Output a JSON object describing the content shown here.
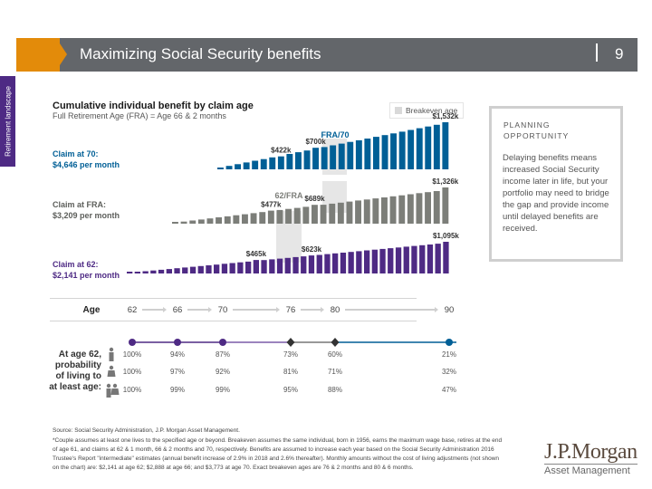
{
  "header": {
    "title": "Maximizing Social Security benefits",
    "page_number": "9",
    "side_tab": "Retirement landscape"
  },
  "chart_data": {
    "type": "bar",
    "title": "Cumulative individual benefit by claim age",
    "subtitle": "Full Retirement Age (FRA) = Age 66 & 2 months",
    "legend": {
      "label": "Breakeven age",
      "position": "top-right",
      "swatch_color": "#d9d9d9"
    },
    "xlabel": "Age",
    "age_ticks": [
      "62",
      "66",
      "70",
      "76",
      "80",
      "90"
    ],
    "series": [
      {
        "name": "Claim at 70",
        "label_line1": "Claim at 70:",
        "label_line2": "$4,646 per month",
        "color": "#005f96",
        "start_age": 70,
        "values_k": [
          56,
          111,
          167,
          223,
          279,
          334,
          390,
          422,
          502,
          557,
          613,
          700,
          724,
          780,
          836,
          892,
          947,
          1003,
          1059,
          1115,
          1170,
          1226,
          1282,
          1338,
          1394,
          1449,
          1532
        ],
        "annotations": [
          {
            "text": "$422k",
            "index": 7
          },
          {
            "text": "$700k",
            "index": 11
          },
          {
            "text": "$1,532k",
            "index": 26
          }
        ]
      },
      {
        "name": "Claim at FRA",
        "label_line1": "Claim at FRA:",
        "label_line2": "$3,209 per month",
        "color": "#7c7e79",
        "start_age": 66.17,
        "values_k": [
          38,
          77,
          115,
          154,
          192,
          231,
          269,
          308,
          346,
          385,
          423,
          477,
          500,
          539,
          577,
          616,
          689,
          693,
          731,
          770,
          808,
          847,
          885,
          924,
          962,
          1001,
          1039,
          1078,
          1116,
          1155,
          1193,
          1326
        ],
        "annotations": [
          {
            "text": "$477k",
            "index": 11
          },
          {
            "text": "$689k",
            "index": 16
          },
          {
            "text": "$1,326k",
            "index": 31
          }
        ]
      },
      {
        "name": "Claim at 62",
        "label_line1": "Claim at 62:",
        "label_line2": "$2,141 per month",
        "color": "#4e2a84",
        "start_age": 62,
        "values_k": [
          26,
          51,
          77,
          103,
          128,
          154,
          180,
          206,
          231,
          257,
          283,
          308,
          334,
          360,
          385,
          411,
          465,
          462,
          488,
          514,
          539,
          565,
          591,
          623,
          642,
          668,
          694,
          720,
          745,
          771,
          797,
          822,
          848,
          874,
          899,
          925,
          951,
          977,
          1002,
          1028,
          1095
        ],
        "annotations": [
          {
            "text": "$465k",
            "index": 16
          },
          {
            "text": "$623k",
            "index": 23
          },
          {
            "text": "$1,095k",
            "index": 40
          }
        ]
      }
    ],
    "breakeven_labels": [
      {
        "text": "FRA/70",
        "color": "#005f96"
      },
      {
        "text": "62/FRA",
        "color": "#7c7e79"
      }
    ]
  },
  "probability": {
    "label": "At age 62, probability of living to at least age:",
    "rows": [
      {
        "icon": "male-icon",
        "values": [
          "100%",
          "94%",
          "87%",
          "73%",
          "60%",
          "21%"
        ]
      },
      {
        "icon": "female-icon",
        "values": [
          "100%",
          "97%",
          "92%",
          "81%",
          "71%",
          "32%"
        ]
      },
      {
        "icon": "couple-icon",
        "values": [
          "100%",
          "99%",
          "99%",
          "95%",
          "88%",
          "47%"
        ]
      }
    ]
  },
  "planning": {
    "heading": "PLANNING OPPORTUNITY",
    "body": "Delaying benefits means increased Social Security income later in life, but your portfolio may need to bridge the gap and provide income until delayed benefits are received."
  },
  "source": "Source: Social Security Administration, J.P. Morgan Asset Management.",
  "footnote": "*Couple assumes at least one lives to the specified age or beyond. Breakeven assumes the same individual, born in 1956, earns the maximum wage base, retires at the end of age 61, and claims at 62 & 1 month, 66 & 2 months and 70, respectively. Benefits are assumed to increase each year based on the Social Security Administration 2016 Trustee's Report \"intermediate\" estimates (annual benefit increase of 2.9% in 2018 and 2.6% thereafter). Monthly amounts without the cost of living adjustments (not shown on the chart) are: $2,141 at age 62; $2,888 at age 66; and $3,773 at age 70. Exact breakeven ages are 76 & 2 months and 80 & 6 months.",
  "logo": {
    "main": "J.P.Morgan",
    "sub": "Asset Management"
  }
}
